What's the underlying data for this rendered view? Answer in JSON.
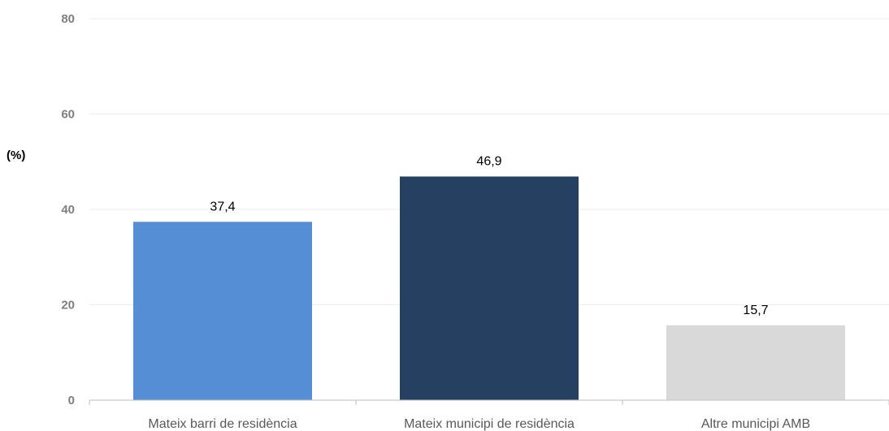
{
  "chart_data": {
    "type": "bar",
    "ylabel": "(%)",
    "ylim": [
      0,
      80
    ],
    "yticks": [
      0,
      20,
      40,
      60,
      80
    ],
    "grid": true,
    "categories": [
      "Mateix barri de residència",
      "Mateix municipi de residència",
      "Altre municipi AMB"
    ],
    "values": [
      37.4,
      46.9,
      15.7
    ],
    "value_labels": [
      "37,4",
      "46,9",
      "15,7"
    ],
    "colors": [
      "#558ed5",
      "#254061",
      "#d9d9d9"
    ]
  }
}
